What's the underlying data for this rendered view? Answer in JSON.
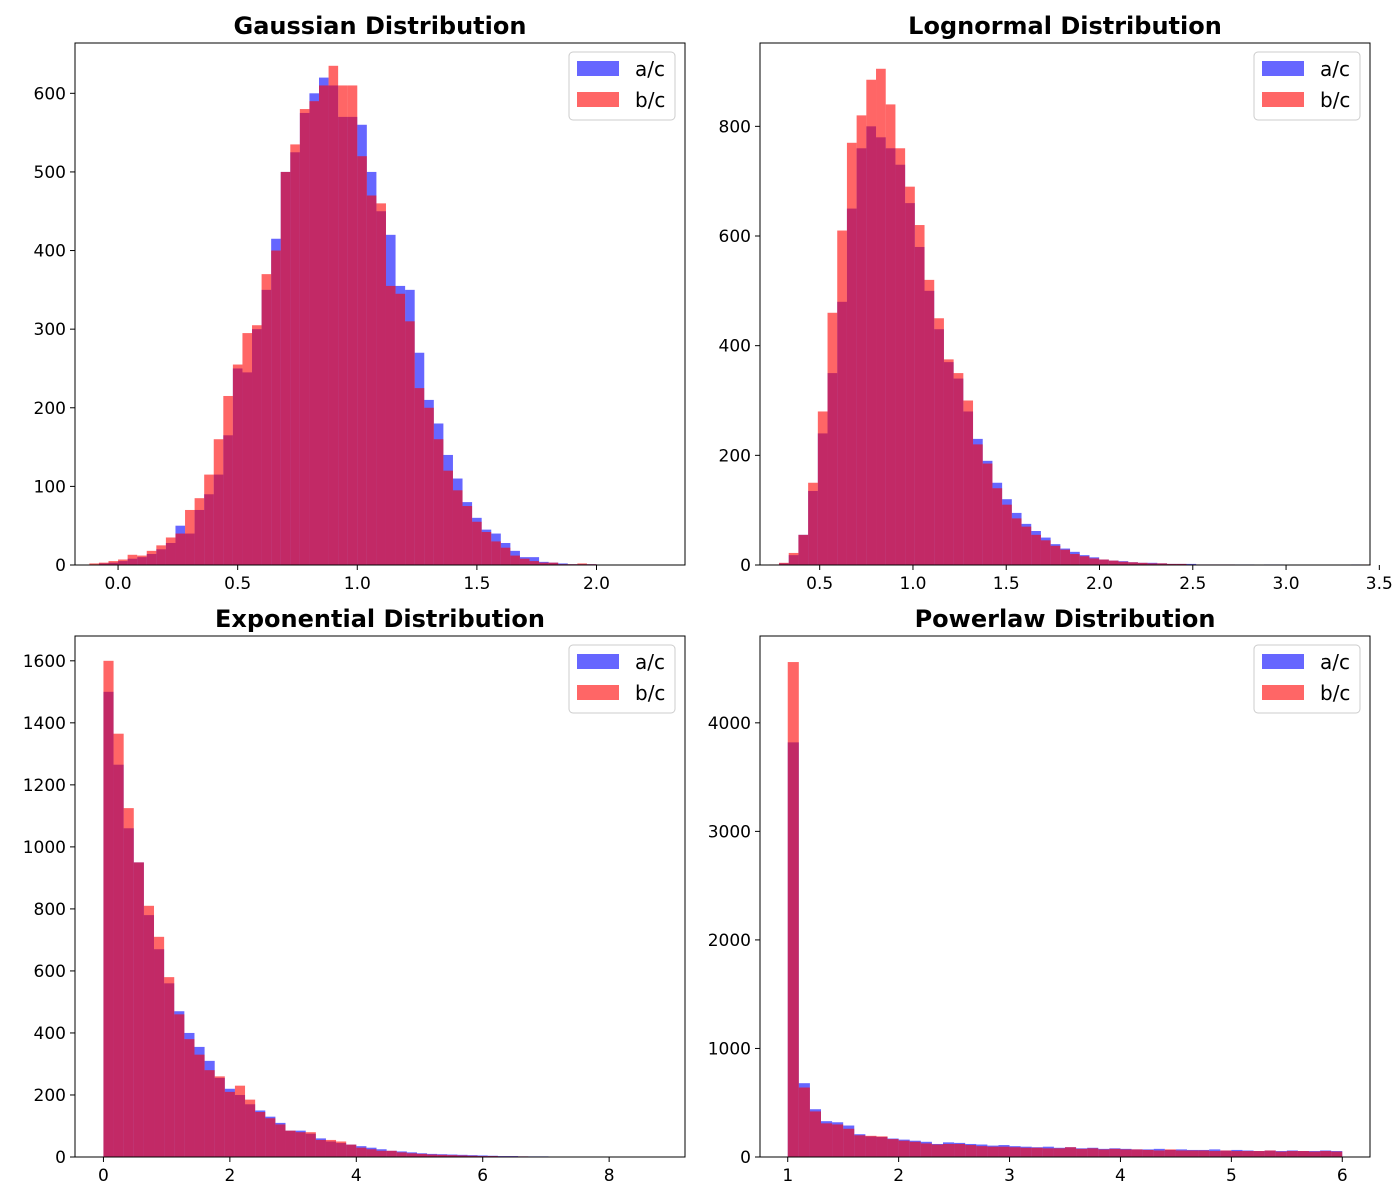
{
  "chart_data": [
    {
      "type": "bar",
      "title": "Gaussian Distribution",
      "xlim": [
        -0.18,
        2.37
      ],
      "ylim": [
        0,
        664
      ],
      "xticks": [
        0.0,
        0.5,
        1.0,
        1.5,
        2.0
      ],
      "xtick_labels": [
        "0.0",
        "0.5",
        "1.0",
        "1.5",
        "2.0"
      ],
      "yticks": [
        0,
        100,
        200,
        300,
        400,
        500,
        600
      ],
      "ytick_labels": [
        "0",
        "100",
        "200",
        "300",
        "400",
        "500",
        "600"
      ],
      "legend": {
        "position": "upper right",
        "entries": [
          "a/c",
          "b/c"
        ]
      },
      "grid": false,
      "series": [
        {
          "name": "a/c",
          "color": "#0000ff",
          "alpha": 0.6,
          "bin_start": -0.12,
          "bin_width": 0.04,
          "values": [
            0,
            2,
            3,
            5,
            8,
            10,
            14,
            20,
            28,
            50,
            40,
            70,
            90,
            115,
            165,
            250,
            245,
            300,
            350,
            415,
            500,
            525,
            575,
            600,
            620,
            610,
            570,
            570,
            560,
            500,
            450,
            420,
            355,
            350,
            270,
            210,
            180,
            140,
            110,
            80,
            60,
            45,
            40,
            28,
            18,
            10,
            10,
            4,
            3,
            2,
            1,
            1,
            1,
            0
          ]
        },
        {
          "name": "b/c",
          "color": "#ff0000",
          "alpha": 0.6,
          "bin_start": -0.12,
          "bin_width": 0.04,
          "values": [
            2,
            3,
            5,
            7,
            13,
            12,
            18,
            25,
            35,
            40,
            70,
            85,
            115,
            160,
            215,
            255,
            295,
            305,
            370,
            400,
            500,
            535,
            580,
            590,
            610,
            635,
            610,
            610,
            520,
            470,
            460,
            355,
            345,
            310,
            225,
            200,
            160,
            120,
            95,
            75,
            55,
            42,
            30,
            22,
            12,
            8,
            5,
            3,
            3,
            1,
            1,
            2,
            1,
            0
          ]
        }
      ]
    },
    {
      "type": "bar",
      "title": "Lognormal Distribution",
      "xlim": [
        0.18,
        3.45
      ],
      "ylim": [
        0,
        952
      ],
      "xticks": [
        0.5,
        1.0,
        1.5,
        2.0,
        2.5,
        3.0,
        3.5
      ],
      "xtick_labels": [
        "0.5",
        "1.0",
        "1.5",
        "2.0",
        "2.5",
        "3.0",
        "3.5"
      ],
      "yticks": [
        0,
        200,
        400,
        600,
        800
      ],
      "ytick_labels": [
        "0",
        "200",
        "400",
        "600",
        "800"
      ],
      "legend": {
        "position": "upper right",
        "entries": [
          "a/c",
          "b/c"
        ]
      },
      "grid": false,
      "series": [
        {
          "name": "a/c",
          "color": "#0000ff",
          "alpha": 0.6,
          "bin_start": 0.23,
          "bin_width": 0.052,
          "values": [
            0,
            3,
            18,
            55,
            135,
            240,
            350,
            480,
            650,
            760,
            800,
            780,
            760,
            730,
            660,
            580,
            500,
            430,
            370,
            340,
            280,
            230,
            190,
            150,
            120,
            95,
            75,
            62,
            50,
            38,
            30,
            24,
            18,
            14,
            10,
            8,
            7,
            5,
            4,
            4,
            3,
            2,
            2,
            2,
            1,
            1,
            1,
            1,
            1,
            1,
            0,
            1,
            1,
            0,
            0,
            0,
            0,
            0,
            0,
            0,
            1,
            0
          ]
        },
        {
          "name": "b/c",
          "color": "#ff0000",
          "alpha": 0.6,
          "bin_start": 0.23,
          "bin_width": 0.052,
          "values": [
            1,
            4,
            22,
            55,
            150,
            280,
            460,
            610,
            770,
            820,
            885,
            905,
            840,
            760,
            690,
            620,
            520,
            450,
            375,
            350,
            300,
            220,
            185,
            140,
            110,
            85,
            70,
            55,
            45,
            35,
            28,
            20,
            16,
            12,
            10,
            8,
            6,
            5,
            4,
            3,
            3,
            2,
            2,
            1,
            1,
            1,
            1,
            1,
            0,
            0,
            0,
            0,
            0,
            0,
            0,
            0,
            0,
            0,
            0,
            0,
            0,
            1
          ]
        }
      ]
    },
    {
      "type": "bar",
      "title": "Exponential Distribution",
      "xlim": [
        -0.45,
        9.2
      ],
      "ylim": [
        0,
        1680
      ],
      "xticks": [
        0,
        2,
        4,
        6,
        8
      ],
      "xtick_labels": [
        "0",
        "2",
        "4",
        "6",
        "8"
      ],
      "yticks": [
        0,
        200,
        400,
        600,
        800,
        1000,
        1200,
        1400,
        1600
      ],
      "ytick_labels": [
        "0",
        "200",
        "400",
        "600",
        "800",
        "1000",
        "1200",
        "1400",
        "1600"
      ],
      "legend": {
        "position": "upper right",
        "entries": [
          "a/c",
          "b/c"
        ]
      },
      "grid": false,
      "series": [
        {
          "name": "a/c",
          "color": "#0000ff",
          "alpha": 0.6,
          "bin_start": 0.0,
          "bin_width": 0.16,
          "values": [
            1500,
            1265,
            1060,
            950,
            780,
            670,
            560,
            470,
            400,
            355,
            310,
            255,
            220,
            200,
            170,
            150,
            130,
            110,
            85,
            85,
            75,
            60,
            50,
            45,
            40,
            35,
            30,
            25,
            20,
            18,
            15,
            12,
            10,
            9,
            8,
            7,
            6,
            5,
            4,
            3,
            3,
            2,
            2,
            2,
            1,
            1,
            1,
            1,
            1,
            1,
            1,
            0,
            0,
            0,
            1
          ]
        },
        {
          "name": "b/c",
          "color": "#ff0000",
          "alpha": 0.6,
          "bin_start": 0.0,
          "bin_width": 0.16,
          "values": [
            1600,
            1365,
            1125,
            950,
            810,
            710,
            580,
            460,
            380,
            330,
            280,
            260,
            210,
            230,
            185,
            145,
            125,
            105,
            85,
            80,
            80,
            55,
            55,
            50,
            40,
            30,
            25,
            20,
            20,
            15,
            12,
            10,
            8,
            7,
            6,
            5,
            4,
            3,
            3,
            2,
            2,
            2,
            1,
            1,
            1,
            1,
            1,
            0,
            0,
            0,
            0,
            0,
            0,
            0,
            0
          ]
        }
      ]
    },
    {
      "type": "bar",
      "title": "Powerlaw Distribution",
      "xlim": [
        0.75,
        6.25
      ],
      "ylim": [
        0,
        4800
      ],
      "xticks": [
        1,
        2,
        3,
        4,
        5,
        6
      ],
      "xtick_labels": [
        "1",
        "2",
        "3",
        "4",
        "5",
        "6"
      ],
      "yticks": [
        0,
        1000,
        2000,
        3000,
        4000
      ],
      "ytick_labels": [
        "0",
        "1000",
        "2000",
        "3000",
        "4000"
      ],
      "legend": {
        "position": "upper right",
        "entries": [
          "a/c",
          "b/c"
        ]
      },
      "grid": false,
      "series": [
        {
          "name": "a/c",
          "color": "#0000ff",
          "alpha": 0.6,
          "bin_start": 1.0,
          "bin_width": 0.1,
          "values": [
            3820,
            680,
            440,
            330,
            320,
            290,
            210,
            190,
            185,
            170,
            160,
            150,
            140,
            120,
            135,
            130,
            120,
            115,
            105,
            110,
            100,
            95,
            90,
            95,
            85,
            90,
            80,
            85,
            75,
            80,
            75,
            70,
            70,
            75,
            65,
            70,
            65,
            65,
            70,
            60,
            65,
            60,
            55,
            60,
            55,
            60,
            55,
            55,
            60,
            55
          ]
        },
        {
          "name": "b/c",
          "color": "#ff0000",
          "alpha": 0.6,
          "bin_start": 1.0,
          "bin_width": 0.1,
          "values": [
            4560,
            640,
            420,
            310,
            300,
            260,
            200,
            195,
            190,
            165,
            150,
            140,
            125,
            115,
            120,
            120,
            110,
            100,
            95,
            95,
            90,
            85,
            85,
            80,
            80,
            90,
            75,
            80,
            70,
            75,
            70,
            70,
            65,
            60,
            70,
            60,
            60,
            60,
            55,
            60,
            55,
            55,
            55,
            60,
            50,
            55,
            55,
            50,
            55,
            50
          ]
        }
      ]
    }
  ]
}
